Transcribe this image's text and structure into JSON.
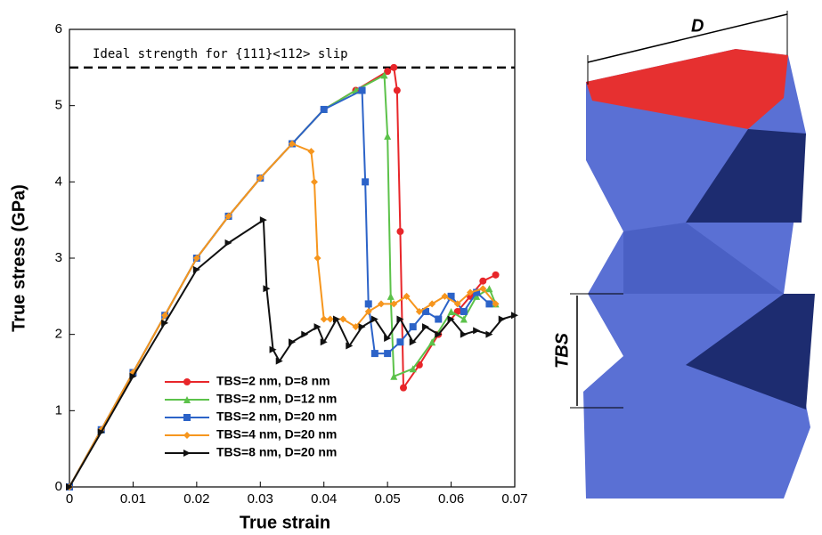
{
  "chart_data": {
    "type": "line",
    "xlabel": "True strain",
    "ylabel": "True stress (GPa)",
    "xlim": [
      0,
      0.07
    ],
    "xticks": [
      0,
      0.01,
      0.02,
      0.03,
      0.04,
      0.05,
      0.06,
      0.07
    ],
    "ylim": [
      0,
      6
    ],
    "yticks": [
      0,
      1,
      2,
      3,
      4,
      5,
      6
    ],
    "reference_line": {
      "value": 5.5,
      "label": "Ideal strength for {111}<112> slip"
    },
    "legend": "lower center",
    "series": [
      {
        "name": "TBS=2 nm, D=8 nm",
        "color": "#e8262a",
        "marker": "circle",
        "x": [
          0,
          0.005,
          0.01,
          0.015,
          0.02,
          0.025,
          0.03,
          0.035,
          0.04,
          0.045,
          0.05,
          0.051,
          0.0515,
          0.052,
          0.0525,
          0.055,
          0.058,
          0.061,
          0.063,
          0.065,
          0.067
        ],
        "values": [
          0,
          0.75,
          1.5,
          2.25,
          3.0,
          3.55,
          4.05,
          4.5,
          4.95,
          5.2,
          5.45,
          5.5,
          5.2,
          3.35,
          1.3,
          1.6,
          2.0,
          2.3,
          2.5,
          2.7,
          2.78
        ]
      },
      {
        "name": "TBS=2 nm, D=12 nm",
        "color": "#5cc24a",
        "marker": "triangle",
        "x": [
          0,
          0.005,
          0.01,
          0.015,
          0.02,
          0.025,
          0.03,
          0.035,
          0.04,
          0.045,
          0.0495,
          0.05,
          0.0505,
          0.051,
          0.054,
          0.057,
          0.06,
          0.062,
          0.064,
          0.066,
          0.067
        ],
        "values": [
          0,
          0.75,
          1.5,
          2.25,
          3.0,
          3.55,
          4.05,
          4.5,
          4.95,
          5.2,
          5.4,
          4.6,
          2.5,
          1.45,
          1.55,
          1.9,
          2.3,
          2.2,
          2.5,
          2.6,
          2.4
        ]
      },
      {
        "name": "TBS=2 nm, D=20 nm",
        "color": "#2c63c8",
        "marker": "square",
        "x": [
          0,
          0.005,
          0.01,
          0.015,
          0.02,
          0.025,
          0.03,
          0.035,
          0.04,
          0.046,
          0.0465,
          0.047,
          0.048,
          0.05,
          0.052,
          0.054,
          0.056,
          0.058,
          0.06,
          0.062,
          0.064,
          0.066
        ],
        "values": [
          0,
          0.75,
          1.5,
          2.25,
          3.0,
          3.55,
          4.05,
          4.5,
          4.95,
          5.2,
          4.0,
          2.4,
          1.75,
          1.75,
          1.9,
          2.1,
          2.3,
          2.2,
          2.5,
          2.3,
          2.55,
          2.4
        ]
      },
      {
        "name": "TBS=4 nm, D=20 nm",
        "color": "#f6961e",
        "marker": "diamond",
        "x": [
          0,
          0.005,
          0.01,
          0.015,
          0.02,
          0.025,
          0.03,
          0.035,
          0.038,
          0.0385,
          0.039,
          0.04,
          0.041,
          0.043,
          0.045,
          0.047,
          0.049,
          0.051,
          0.053,
          0.055,
          0.057,
          0.059,
          0.061,
          0.063,
          0.065,
          0.067
        ],
        "values": [
          0,
          0.75,
          1.5,
          2.25,
          3.0,
          3.55,
          4.05,
          4.5,
          4.4,
          4.0,
          3.0,
          2.2,
          2.2,
          2.2,
          2.1,
          2.3,
          2.4,
          2.4,
          2.5,
          2.3,
          2.4,
          2.5,
          2.4,
          2.55,
          2.6,
          2.4
        ]
      },
      {
        "name": "TBS=8 nm, D=20 nm",
        "color": "#111111",
        "marker": "right-triangle",
        "x": [
          0,
          0.005,
          0.01,
          0.015,
          0.02,
          0.025,
          0.0305,
          0.031,
          0.032,
          0.033,
          0.035,
          0.037,
          0.039,
          0.04,
          0.042,
          0.044,
          0.046,
          0.048,
          0.05,
          0.052,
          0.054,
          0.056,
          0.058,
          0.06,
          0.062,
          0.064,
          0.066,
          0.068,
          0.07
        ],
        "values": [
          0,
          0.72,
          1.45,
          2.15,
          2.85,
          3.2,
          3.5,
          2.6,
          1.8,
          1.65,
          1.9,
          2.0,
          2.1,
          1.9,
          2.2,
          1.85,
          2.1,
          2.2,
          1.95,
          2.2,
          1.9,
          2.1,
          2.0,
          2.2,
          2.0,
          2.05,
          2.0,
          2.2,
          2.25
        ]
      }
    ]
  },
  "figure_labels": {
    "diameter": "D",
    "spacing": "TBS"
  }
}
